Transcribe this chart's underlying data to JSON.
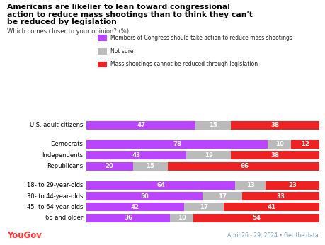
{
  "title_line1": "Americans are likelier to lean toward congressional",
  "title_line2": "action to reduce mass shootings than to think they can't",
  "title_line3": "be reduced by legislation",
  "subtitle": "Which comes closer to your opinion? (%)",
  "legend": [
    {
      "label": "Members of Congress should take action to reduce mass shootings",
      "color": "#bb44ff"
    },
    {
      "label": "Not sure",
      "color": "#bbbbbb"
    },
    {
      "label": "Mass shootings cannot be reduced through legislation",
      "color": "#ee2222"
    }
  ],
  "categories": [
    "U.S. adult citizens",
    "Democrats",
    "Independents",
    "Republicans",
    "18- to 29-year-olds",
    "30- to 44-year-olds",
    "45- to 64-year-olds",
    "65 and older"
  ],
  "data": [
    [
      47,
      15,
      38
    ],
    [
      78,
      10,
      12
    ],
    [
      43,
      19,
      38
    ],
    [
      20,
      15,
      66
    ],
    [
      64,
      13,
      23
    ],
    [
      50,
      17,
      33
    ],
    [
      42,
      17,
      41
    ],
    [
      36,
      10,
      54
    ]
  ],
  "colors": [
    "#bb44ff",
    "#bbbbbb",
    "#ee2222"
  ],
  "background_color": "#ffffff",
  "yougov_color": "#ff3333",
  "footer_color": "#7799bb",
  "footer_text": "April 26 - 29, 2024 • Get the data"
}
